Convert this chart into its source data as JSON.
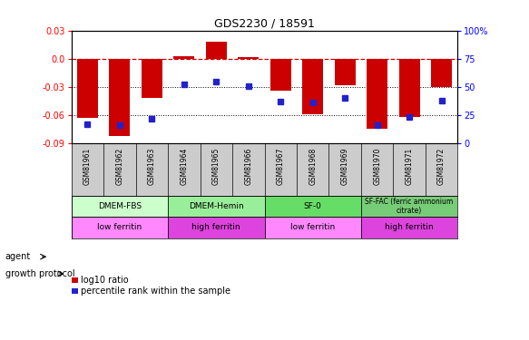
{
  "title": "GDS2230 / 18591",
  "samples": [
    "GSM81961",
    "GSM81962",
    "GSM81963",
    "GSM81964",
    "GSM81965",
    "GSM81966",
    "GSM81967",
    "GSM81968",
    "GSM81969",
    "GSM81970",
    "GSM81971",
    "GSM81972"
  ],
  "log10_ratio": [
    -0.063,
    -0.082,
    -0.042,
    0.003,
    0.018,
    0.002,
    -0.034,
    -0.059,
    -0.028,
    -0.075,
    -0.062,
    -0.03
  ],
  "percentile_rank": [
    17,
    16,
    22,
    52,
    55,
    51,
    37,
    36,
    40,
    16,
    23,
    38
  ],
  "ylim": [
    -0.09,
    0.03
  ],
  "yticks_left": [
    -0.09,
    -0.06,
    -0.03,
    0.0,
    0.03
  ],
  "yticks_right": [
    0,
    25,
    50,
    75,
    100
  ],
  "bar_color": "#cc0000",
  "dot_color": "#2222cc",
  "hline_color": "#cc0000",
  "agent_groups": [
    {
      "label": "DMEM-FBS",
      "start": 0,
      "end": 2,
      "color": "#ccffcc"
    },
    {
      "label": "DMEM-Hemin",
      "start": 3,
      "end": 5,
      "color": "#99ee99"
    },
    {
      "label": "SF-0",
      "start": 6,
      "end": 8,
      "color": "#66dd66"
    },
    {
      "label": "SF-FAC (ferric ammonium\ncitrate)",
      "start": 9,
      "end": 11,
      "color": "#77cc77"
    }
  ],
  "protocol_groups": [
    {
      "label": "low ferritin",
      "start": 0,
      "end": 2,
      "color": "#ff88ff"
    },
    {
      "label": "high ferritin",
      "start": 3,
      "end": 5,
      "color": "#dd44dd"
    },
    {
      "label": "low ferritin",
      "start": 6,
      "end": 8,
      "color": "#ff88ff"
    },
    {
      "label": "high ferritin",
      "start": 9,
      "end": 11,
      "color": "#dd44dd"
    }
  ],
  "legend_bar_label": "log10 ratio",
  "legend_dot_label": "percentile rank within the sample",
  "background_color": "#ffffff"
}
